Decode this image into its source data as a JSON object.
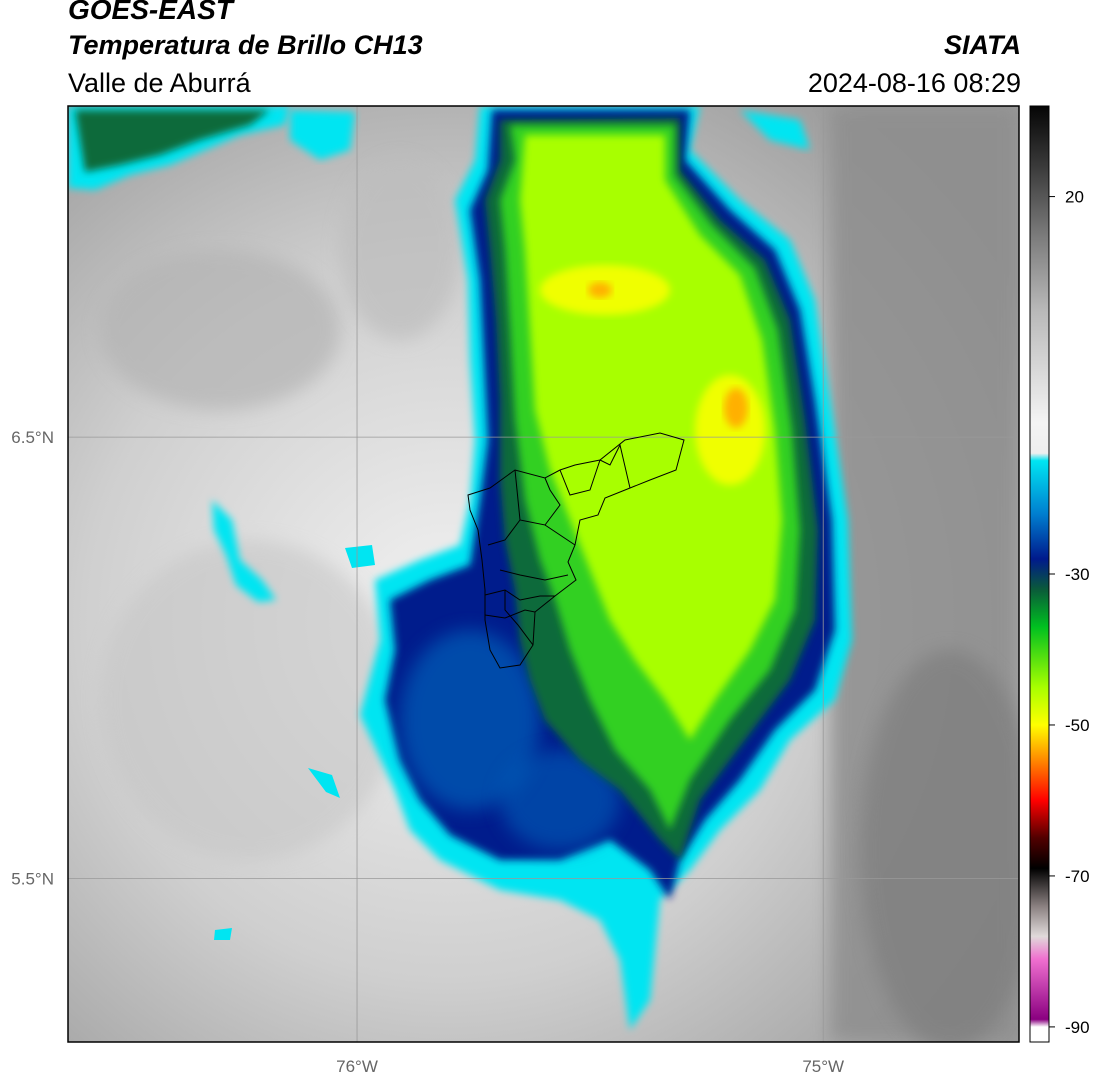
{
  "header": {
    "satellite": "GOES-EAST",
    "product": "Temperatura de Brillo CH13",
    "region": "Valle de Aburrá",
    "organization": "SIATA",
    "datetime": "2024-08-16 08:29"
  },
  "map": {
    "lat_ticks": [
      {
        "value": 6.5,
        "label": "6.5°N"
      },
      {
        "value": 5.5,
        "label": "5.5°N"
      }
    ],
    "lon_ticks": [
      {
        "value": -76.0,
        "label": "76°W"
      },
      {
        "value": -75.0,
        "label": "75°W"
      }
    ],
    "extent": {
      "lon_min": -76.62,
      "lon_max": -74.58,
      "lat_min": 5.13,
      "lat_max": 7.25
    },
    "gridline_color": "#999999"
  },
  "colorbar": {
    "range": [
      -92,
      32
    ],
    "ticks": [
      {
        "value": 20,
        "label": "20"
      },
      {
        "value": -30,
        "label": "-30"
      },
      {
        "value": -50,
        "label": "-50"
      },
      {
        "value": -70,
        "label": "-70"
      },
      {
        "value": -90,
        "label": "-90"
      }
    ],
    "stops": [
      {
        "v": 32,
        "c": "#050505"
      },
      {
        "v": 24,
        "c": "#3a3a3a"
      },
      {
        "v": 15,
        "c": "#7a7a7a"
      },
      {
        "v": 5,
        "c": "#b8b8b8"
      },
      {
        "v": -10,
        "c": "#f4f4f4"
      },
      {
        "v": -14,
        "c": "#eeeeee"
      },
      {
        "v": -15,
        "c": "#00e5f2"
      },
      {
        "v": -22,
        "c": "#007fd0"
      },
      {
        "v": -28,
        "c": "#001a8c"
      },
      {
        "v": -32,
        "c": "#0a5a3a"
      },
      {
        "v": -37,
        "c": "#00c020"
      },
      {
        "v": -45,
        "c": "#a8ff00"
      },
      {
        "v": -50,
        "c": "#ffff00"
      },
      {
        "v": -55,
        "c": "#ff8000"
      },
      {
        "v": -60,
        "c": "#ff0000"
      },
      {
        "v": -65,
        "c": "#500000"
      },
      {
        "v": -69,
        "c": "#000000"
      },
      {
        "v": -74,
        "c": "#8a8080"
      },
      {
        "v": -78,
        "c": "#e0dada"
      },
      {
        "v": -81,
        "c": "#f070d0"
      },
      {
        "v": -89,
        "c": "#8a0080"
      },
      {
        "v": -90,
        "c": "#ffffff"
      },
      {
        "v": -92,
        "c": "#ffffff"
      }
    ]
  },
  "scene_colors": {
    "warm_bg": "#d8d8d8",
    "warm_bg_dark": "#8a8a8a",
    "cloud_edge": "#00e5f2",
    "cloud_mid": "#005fb8",
    "cloud_deep": "#001a8c",
    "cloud_green_dark": "#0a6a3a",
    "cloud_green": "#30d020",
    "cloud_lime": "#a8ff00",
    "cloud_yellow": "#f0ff00",
    "cloud_orange": "#ffb000",
    "boundary": "#000000"
  }
}
